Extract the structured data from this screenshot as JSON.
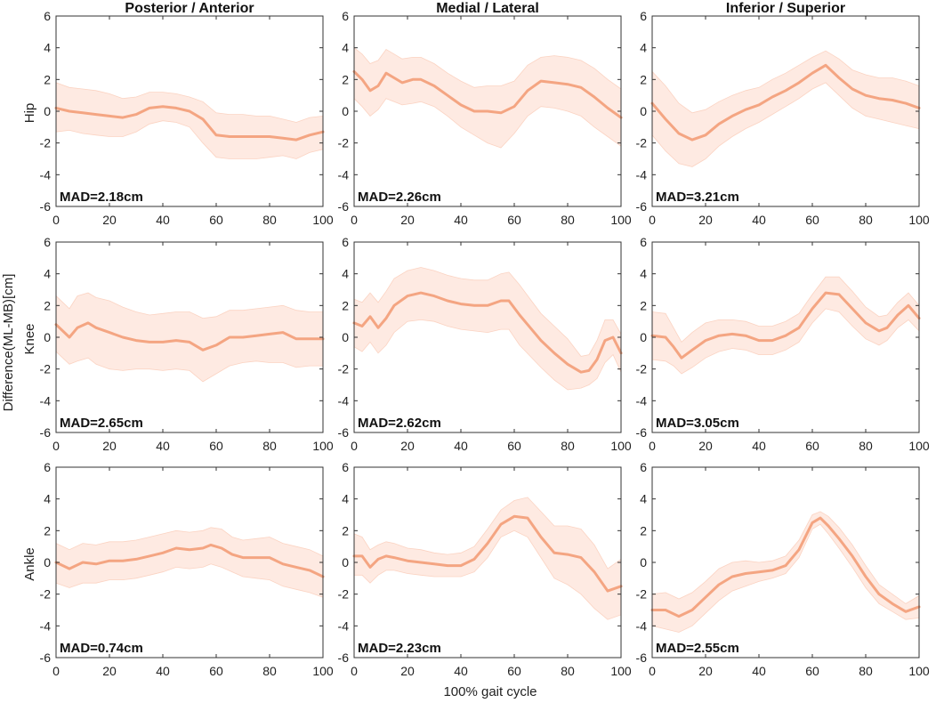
{
  "figure": {
    "y_axis_title": "Difference(ML-MB)[cm]",
    "x_axis_title": "100% gait cycle",
    "column_titles": [
      "Posterior / Anterior",
      "Medial / Lateral",
      "Inferior / Superior"
    ],
    "row_labels": [
      "Hip",
      "Knee",
      "Ankle"
    ],
    "line_color": "#f4a582",
    "band_color": "#fde3d8"
  },
  "chart_data": [
    {
      "type": "line",
      "row": "Hip",
      "column": "Posterior / Anterior",
      "annotation": "MAD=2.18cm",
      "x": [
        0,
        5,
        10,
        15,
        20,
        25,
        30,
        35,
        40,
        45,
        50,
        55,
        60,
        65,
        70,
        75,
        80,
        85,
        90,
        95,
        100
      ],
      "mean": [
        0.2,
        0.0,
        -0.1,
        -0.2,
        -0.3,
        -0.4,
        -0.2,
        0.2,
        0.3,
        0.2,
        0.0,
        -0.5,
        -1.5,
        -1.6,
        -1.6,
        -1.6,
        -1.6,
        -1.7,
        -1.8,
        -1.5,
        -1.3
      ],
      "lower": [
        -1.3,
        -1.2,
        -1.4,
        -1.5,
        -1.6,
        -1.6,
        -1.3,
        -0.8,
        -0.6,
        -0.7,
        -1.0,
        -2.0,
        -2.9,
        -3.0,
        -3.0,
        -3.0,
        -2.9,
        -2.8,
        -3.0,
        -2.6,
        -2.4
      ],
      "upper": [
        1.8,
        1.5,
        1.4,
        1.3,
        1.1,
        0.8,
        0.9,
        1.2,
        1.2,
        1.1,
        0.9,
        0.6,
        -0.1,
        -0.2,
        -0.2,
        -0.3,
        -0.3,
        -0.5,
        -0.7,
        -0.4,
        -0.3
      ],
      "xlim": [
        0,
        100
      ],
      "ylim": [
        -6,
        6
      ],
      "xticks": [
        0,
        20,
        40,
        60,
        80,
        100
      ],
      "yticks": [
        -6,
        -4,
        -2,
        0,
        2,
        4,
        6
      ]
    },
    {
      "type": "line",
      "row": "Hip",
      "column": "Medial / Lateral",
      "annotation": "MAD=2.26cm",
      "x": [
        0,
        3,
        6,
        9,
        12,
        15,
        18,
        22,
        25,
        30,
        35,
        40,
        45,
        50,
        55,
        60,
        65,
        70,
        75,
        80,
        85,
        90,
        95,
        100
      ],
      "mean": [
        2.5,
        2.0,
        1.3,
        1.6,
        2.4,
        2.1,
        1.8,
        2.0,
        2.0,
        1.6,
        1.0,
        0.4,
        0.0,
        0.0,
        -0.1,
        0.3,
        1.3,
        1.9,
        1.8,
        1.7,
        1.5,
        0.9,
        0.2,
        -0.4
      ],
      "lower": [
        0.8,
        0.3,
        -0.3,
        0.1,
        0.8,
        0.6,
        0.4,
        0.5,
        0.6,
        0.3,
        -0.3,
        -1.0,
        -1.5,
        -2.0,
        -2.3,
        -1.4,
        -0.3,
        0.3,
        0.2,
        0.0,
        -0.3,
        -1.0,
        -1.6,
        -2.2
      ],
      "upper": [
        4.0,
        3.6,
        3.0,
        3.2,
        3.9,
        3.6,
        3.3,
        3.4,
        3.4,
        3.0,
        2.4,
        1.9,
        1.5,
        1.6,
        1.6,
        1.9,
        2.9,
        3.4,
        3.5,
        3.4,
        3.2,
        2.7,
        2.0,
        1.4
      ],
      "xlim": [
        0,
        100
      ],
      "ylim": [
        -6,
        6
      ],
      "xticks": [
        0,
        20,
        40,
        60,
        80,
        100
      ],
      "yticks": [
        -6,
        -4,
        -2,
        0,
        2,
        4,
        6
      ]
    },
    {
      "type": "line",
      "row": "Hip",
      "column": "Inferior / Superior",
      "annotation": "MAD=3.21cm",
      "x": [
        0,
        5,
        10,
        15,
        20,
        25,
        30,
        35,
        40,
        45,
        50,
        55,
        60,
        65,
        70,
        75,
        80,
        85,
        90,
        95,
        100
      ],
      "mean": [
        0.5,
        -0.5,
        -1.4,
        -1.8,
        -1.5,
        -0.8,
        -0.3,
        0.1,
        0.4,
        0.9,
        1.3,
        1.8,
        2.4,
        2.9,
        2.1,
        1.4,
        1.0,
        0.8,
        0.7,
        0.5,
        0.2
      ],
      "lower": [
        -1.5,
        -2.5,
        -3.3,
        -3.5,
        -3.0,
        -2.2,
        -1.6,
        -1.1,
        -0.7,
        -0.2,
        0.3,
        0.8,
        1.4,
        1.8,
        1.0,
        0.2,
        -0.3,
        -0.5,
        -0.7,
        -0.9,
        -1.1
      ],
      "upper": [
        2.5,
        1.6,
        0.5,
        -0.1,
        0.1,
        0.6,
        1.0,
        1.3,
        1.5,
        2.0,
        2.4,
        2.9,
        3.4,
        3.8,
        3.3,
        2.6,
        2.3,
        2.1,
        2.1,
        1.9,
        1.6
      ],
      "xlim": [
        0,
        100
      ],
      "ylim": [
        -6,
        6
      ],
      "xticks": [
        0,
        20,
        40,
        60,
        80,
        100
      ],
      "yticks": [
        -6,
        -4,
        -2,
        0,
        2,
        4,
        6
      ]
    },
    {
      "type": "line",
      "row": "Knee",
      "column": "Posterior / Anterior",
      "annotation": "MAD=2.65cm",
      "x": [
        0,
        5,
        8,
        12,
        15,
        20,
        25,
        30,
        35,
        40,
        45,
        50,
        55,
        60,
        65,
        70,
        75,
        80,
        85,
        90,
        95,
        100
      ],
      "mean": [
        0.8,
        0.0,
        0.6,
        0.9,
        0.6,
        0.3,
        0.0,
        -0.2,
        -0.3,
        -0.3,
        -0.2,
        -0.3,
        -0.8,
        -0.5,
        0.0,
        0.0,
        0.1,
        0.2,
        0.3,
        -0.1,
        -0.1,
        -0.1
      ],
      "lower": [
        -0.9,
        -1.7,
        -1.5,
        -1.3,
        -1.7,
        -2.0,
        -2.1,
        -2.0,
        -2.0,
        -2.1,
        -2.0,
        -2.1,
        -2.8,
        -2.3,
        -1.8,
        -1.6,
        -1.5,
        -1.6,
        -1.6,
        -1.9,
        -1.8,
        -1.8
      ],
      "upper": [
        2.6,
        1.8,
        2.6,
        2.8,
        2.5,
        2.3,
        1.9,
        1.6,
        1.4,
        1.5,
        1.6,
        1.6,
        1.2,
        1.3,
        1.7,
        1.7,
        1.8,
        1.9,
        2.0,
        1.7,
        1.6,
        1.6
      ],
      "xlim": [
        0,
        100
      ],
      "ylim": [
        -6,
        6
      ],
      "xticks": [
        0,
        20,
        40,
        60,
        80,
        100
      ],
      "yticks": [
        -6,
        -4,
        -2,
        0,
        2,
        4,
        6
      ]
    },
    {
      "type": "line",
      "row": "Knee",
      "column": "Medial / Lateral",
      "annotation": "MAD=2.62cm",
      "x": [
        0,
        3,
        6,
        9,
        12,
        15,
        20,
        25,
        30,
        35,
        40,
        45,
        50,
        55,
        58,
        62,
        66,
        70,
        75,
        80,
        85,
        88,
        91,
        94,
        97,
        100
      ],
      "mean": [
        0.9,
        0.7,
        1.3,
        0.6,
        1.2,
        2.0,
        2.6,
        2.8,
        2.6,
        2.3,
        2.1,
        2.0,
        2.0,
        2.3,
        2.3,
        1.4,
        0.6,
        -0.2,
        -1.0,
        -1.7,
        -2.2,
        -2.1,
        -1.4,
        -0.2,
        0.0,
        -1.0
      ],
      "lower": [
        -0.6,
        -0.9,
        -0.3,
        -1.0,
        -0.5,
        0.3,
        1.0,
        1.1,
        1.0,
        0.7,
        0.5,
        0.4,
        0.3,
        0.5,
        0.5,
        -0.5,
        -1.2,
        -1.9,
        -2.7,
        -3.3,
        -3.2,
        -3.0,
        -2.6,
        -1.6,
        -1.1,
        -2.2
      ],
      "upper": [
        2.4,
        2.2,
        2.8,
        2.2,
        2.9,
        3.7,
        4.2,
        4.4,
        4.2,
        3.9,
        3.7,
        3.6,
        3.6,
        4.0,
        4.1,
        3.3,
        2.4,
        1.5,
        0.7,
        -0.1,
        -1.2,
        -1.1,
        -0.2,
        1.1,
        1.1,
        0.2
      ],
      "xlim": [
        0,
        100
      ],
      "ylim": [
        -6,
        6
      ],
      "xticks": [
        0,
        20,
        40,
        60,
        80,
        100
      ],
      "yticks": [
        -6,
        -4,
        -2,
        0,
        2,
        4,
        6
      ]
    },
    {
      "type": "line",
      "row": "Knee",
      "column": "Inferior / Superior",
      "annotation": "MAD=3.05cm",
      "x": [
        0,
        5,
        8,
        11,
        15,
        20,
        25,
        30,
        35,
        40,
        45,
        50,
        55,
        60,
        65,
        70,
        75,
        80,
        85,
        88,
        92,
        96,
        100
      ],
      "mean": [
        0.1,
        0.0,
        -0.6,
        -1.3,
        -0.8,
        -0.2,
        0.1,
        0.2,
        0.1,
        -0.2,
        -0.2,
        0.1,
        0.6,
        1.8,
        2.8,
        2.7,
        1.8,
        0.9,
        0.4,
        0.6,
        1.4,
        2.0,
        1.2
      ],
      "lower": [
        -1.4,
        -1.5,
        -1.8,
        -2.3,
        -1.9,
        -1.3,
        -0.9,
        -0.7,
        -0.8,
        -1.1,
        -1.1,
        -0.8,
        -0.3,
        0.9,
        1.8,
        1.6,
        0.7,
        -0.1,
        -0.5,
        -0.2,
        0.6,
        1.1,
        0.4
      ],
      "upper": [
        1.6,
        1.5,
        0.6,
        -0.3,
        0.3,
        0.9,
        1.1,
        1.1,
        1.0,
        0.7,
        0.7,
        1.0,
        1.5,
        2.7,
        3.8,
        3.8,
        2.9,
        1.9,
        1.3,
        1.4,
        2.2,
        2.8,
        2.0
      ],
      "xlim": [
        0,
        100
      ],
      "ylim": [
        -6,
        6
      ],
      "xticks": [
        0,
        20,
        40,
        60,
        80,
        100
      ],
      "yticks": [
        -6,
        -4,
        -2,
        0,
        2,
        4,
        6
      ]
    },
    {
      "type": "line",
      "row": "Ankle",
      "column": "Posterior / Anterior",
      "annotation": "MAD=0.74cm",
      "x": [
        0,
        5,
        10,
        15,
        20,
        25,
        30,
        35,
        40,
        45,
        50,
        55,
        58,
        62,
        66,
        70,
        75,
        80,
        85,
        90,
        95,
        100
      ],
      "mean": [
        0.0,
        -0.4,
        0.0,
        -0.1,
        0.1,
        0.1,
        0.2,
        0.4,
        0.6,
        0.9,
        0.8,
        0.9,
        1.1,
        0.9,
        0.5,
        0.3,
        0.3,
        0.3,
        -0.1,
        -0.3,
        -0.5,
        -0.9
      ],
      "lower": [
        -1.3,
        -1.6,
        -1.3,
        -1.3,
        -1.1,
        -1.1,
        -1.0,
        -0.8,
        -0.6,
        -0.3,
        -0.4,
        -0.3,
        -0.1,
        -0.3,
        -0.6,
        -0.9,
        -1.0,
        -1.1,
        -1.5,
        -1.7,
        -1.9,
        -2.2
      ],
      "upper": [
        1.2,
        0.8,
        1.2,
        1.1,
        1.3,
        1.3,
        1.4,
        1.6,
        1.8,
        2.0,
        1.9,
        2.0,
        2.2,
        2.1,
        1.6,
        1.4,
        1.5,
        1.6,
        1.2,
        1.0,
        0.8,
        0.4
      ],
      "xlim": [
        0,
        100
      ],
      "ylim": [
        -6,
        6
      ],
      "xticks": [
        0,
        20,
        40,
        60,
        80,
        100
      ],
      "yticks": [
        -6,
        -4,
        -2,
        0,
        2,
        4,
        6
      ]
    },
    {
      "type": "line",
      "row": "Ankle",
      "column": "Medial / Lateral",
      "annotation": "MAD=2.23cm",
      "x": [
        0,
        3,
        6,
        9,
        12,
        15,
        20,
        25,
        30,
        35,
        40,
        45,
        50,
        55,
        60,
        65,
        70,
        75,
        80,
        85,
        90,
        95,
        100
      ],
      "mean": [
        0.4,
        0.4,
        -0.3,
        0.2,
        0.4,
        0.3,
        0.1,
        0.0,
        -0.1,
        -0.2,
        -0.2,
        0.2,
        1.2,
        2.4,
        2.9,
        2.8,
        1.6,
        0.6,
        0.5,
        0.3,
        -0.6,
        -1.8,
        -1.5
      ],
      "lower": [
        -0.8,
        -0.8,
        -1.3,
        -0.8,
        -0.5,
        -0.5,
        -0.7,
        -0.8,
        -0.9,
        -0.9,
        -0.9,
        -0.6,
        0.3,
        1.6,
        2.0,
        1.6,
        0.3,
        -1.0,
        -1.4,
        -2.0,
        -2.9,
        -3.6,
        -3.3
      ],
      "upper": [
        1.8,
        1.6,
        0.8,
        1.1,
        1.3,
        1.2,
        0.9,
        0.8,
        0.6,
        0.5,
        0.6,
        1.0,
        2.1,
        3.3,
        3.9,
        4.1,
        3.2,
        2.3,
        2.3,
        2.1,
        1.1,
        -0.4,
        0.2
      ],
      "xlim": [
        0,
        100
      ],
      "ylim": [
        -6,
        6
      ],
      "xticks": [
        0,
        20,
        40,
        60,
        80,
        100
      ],
      "yticks": [
        -6,
        -4,
        -2,
        0,
        2,
        4,
        6
      ]
    },
    {
      "type": "line",
      "row": "Ankle",
      "column": "Inferior / Superior",
      "annotation": "MAD=2.55cm",
      "x": [
        0,
        5,
        10,
        15,
        20,
        25,
        30,
        35,
        40,
        45,
        50,
        55,
        60,
        63,
        66,
        70,
        75,
        80,
        85,
        90,
        95,
        100
      ],
      "mean": [
        -3.0,
        -3.0,
        -3.4,
        -3.0,
        -2.2,
        -1.4,
        -0.9,
        -0.7,
        -0.6,
        -0.5,
        -0.2,
        0.8,
        2.5,
        2.8,
        2.3,
        1.5,
        0.4,
        -0.9,
        -2.0,
        -2.6,
        -3.1,
        -2.8
      ],
      "lower": [
        -4.0,
        -4.2,
        -4.4,
        -4.0,
        -3.2,
        -2.4,
        -1.8,
        -1.5,
        -1.2,
        -1.0,
        -0.7,
        0.3,
        2.1,
        2.4,
        1.8,
        0.9,
        -0.3,
        -1.6,
        -2.6,
        -3.1,
        -3.6,
        -3.5
      ],
      "upper": [
        -2.0,
        -1.9,
        -2.3,
        -1.9,
        -1.2,
        -0.4,
        0.0,
        0.1,
        0.0,
        0.1,
        0.4,
        1.4,
        3.0,
        3.2,
        2.9,
        2.2,
        1.1,
        -0.2,
        -1.4,
        -2.0,
        -2.6,
        -2.1
      ],
      "xlim": [
        0,
        100
      ],
      "ylim": [
        -6,
        6
      ],
      "xticks": [
        0,
        20,
        40,
        60,
        80,
        100
      ],
      "yticks": [
        -6,
        -4,
        -2,
        0,
        2,
        4,
        6
      ]
    }
  ]
}
